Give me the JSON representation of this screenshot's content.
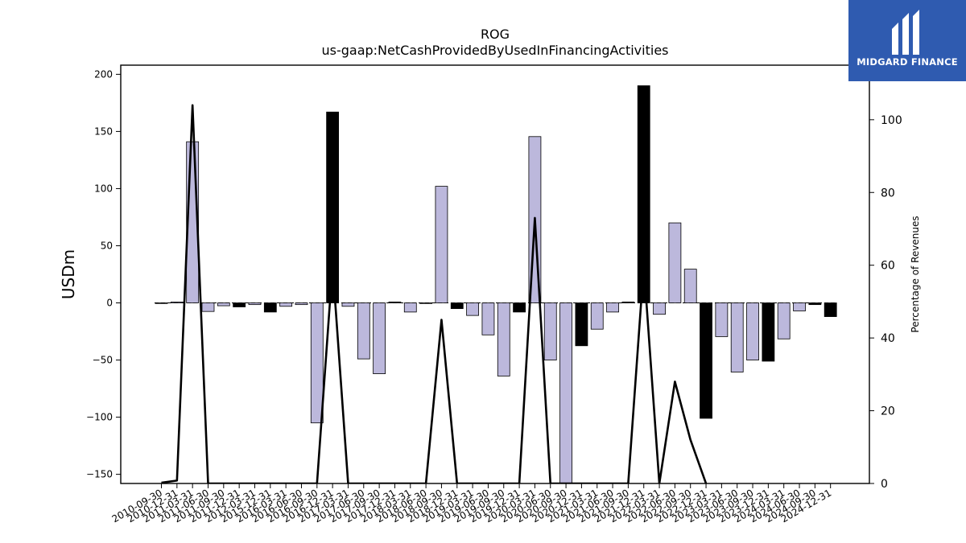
{
  "brand": {
    "name": "MIDGARD FINANCE",
    "background": "#2f5bb0"
  },
  "chart_data": {
    "type": "bar",
    "title": "ROG",
    "subtitle": "us-gaap:NetCashProvidedByUsedInFinancingActivities",
    "ylabel": "USDm",
    "y2label": "Percentage of Revenues",
    "ylim": [
      -158,
      208
    ],
    "y2lim": [
      0,
      115
    ],
    "yticks": [
      -150,
      -100,
      -50,
      0,
      50,
      100,
      150,
      200
    ],
    "y2ticks": [
      0,
      20,
      40,
      60,
      80,
      100
    ],
    "grid": false,
    "colors": {
      "positive_bar": "#bcb8dc",
      "negative_bar": "#000000",
      "line": "#000000"
    },
    "categories": [
      "2010-09-30",
      "2010-12-31",
      "2011-03-31",
      "2011-06-30",
      "2011-09-30",
      "2011-12-31",
      "2012-03-31",
      "2015-12-31",
      "2016-03-31",
      "2016-06-30",
      "2016-09-30",
      "2016-12-31",
      "2017-03-31",
      "2017-06-30",
      "2017-09-30",
      "2017-12-31",
      "2018-03-31",
      "2018-06-30",
      "2018-09-30",
      "2018-12-31",
      "2019-03-31",
      "2019-06-30",
      "2019-09-30",
      "2019-12-31",
      "2020-03-31",
      "2020-06-30",
      "2020-09-30",
      "2020-12-31",
      "2021-03-31",
      "2021-06-30",
      "2021-09-30",
      "2021-12-31",
      "2022-03-31",
      "2022-06-30",
      "2022-09-30",
      "2022-12-31",
      "2023-03-31",
      "2023-06-30",
      "2023-09-30",
      "2023-12-31",
      "2024-03-31",
      "2024-06-30",
      "2024-09-30",
      "2024-12-31"
    ],
    "series": [
      {
        "kind": "bar",
        "values": [
          0,
          0.8,
          141,
          -7.5,
          -2.5,
          -3.5,
          -1.5,
          -8,
          -3,
          -1.5,
          -105,
          167,
          -3,
          -49,
          -62,
          0.8,
          -8,
          0,
          102,
          -5,
          -11,
          -28,
          -64,
          -8,
          145.5,
          -50,
          -160,
          -37.5,
          -23,
          -8,
          0.8,
          190,
          -10,
          70,
          29.5,
          -101,
          -29.5,
          -60.5,
          -50,
          -51,
          -31.5,
          -7,
          -1.5,
          -12
        ],
        "shade": [
          "n",
          "p",
          "p",
          "n",
          "n",
          "x",
          "n",
          "x",
          "n",
          "n",
          "n",
          "x",
          "n",
          "n",
          "n",
          "x",
          "n",
          "n",
          "p",
          "x",
          "n",
          "n",
          "n",
          "x",
          "p",
          "n",
          "n",
          "x",
          "n",
          "n",
          "x",
          "x",
          "n",
          "p",
          "p",
          "x",
          "n",
          "n",
          "n",
          "x",
          "n",
          "n",
          "x",
          "x"
        ]
      },
      {
        "kind": "line",
        "axis": "right",
        "points": [
          [
            0,
            0.2
          ],
          [
            1,
            0.8
          ],
          [
            2,
            104
          ],
          [
            3,
            0
          ],
          [
            10,
            0
          ],
          [
            11,
            60
          ],
          [
            12,
            0
          ],
          [
            17,
            0
          ],
          [
            18,
            45
          ],
          [
            19,
            0
          ],
          [
            23,
            0
          ],
          [
            24,
            73
          ],
          [
            25,
            0
          ],
          [
            30,
            0
          ],
          [
            31,
            60
          ],
          [
            32,
            0
          ],
          [
            33,
            28
          ],
          [
            34,
            12
          ],
          [
            35,
            0
          ]
        ]
      }
    ]
  }
}
